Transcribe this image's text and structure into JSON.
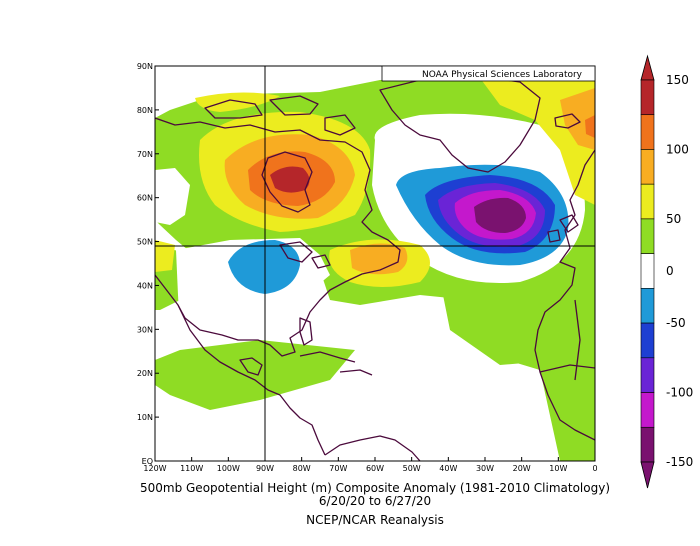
{
  "credit": "NOAA Physical Sciences Laboratory",
  "caption": {
    "line1": "500mb Geopotential Height (m) Composite Anomaly (1981-2010 Climatology)",
    "line2": "6/20/20   to 6/27/20",
    "line3": "NCEP/NCAR Reanalysis"
  },
  "map": {
    "lon_range": [
      -120,
      0
    ],
    "lat_range": [
      0,
      90
    ],
    "lon_ticks": [
      "120W",
      "110W",
      "100W",
      "90W",
      "80W",
      "70W",
      "60W",
      "50W",
      "40W",
      "30W",
      "20W",
      "10W",
      "0"
    ],
    "lat_ticks": [
      "EQ",
      "10N",
      "20N",
      "30N",
      "40N",
      "50N",
      "60N",
      "70N",
      "80N",
      "90N"
    ],
    "crosshair": {
      "lon": -90,
      "lat": 49
    }
  },
  "colorbar": {
    "labels": [
      "150",
      "100",
      "50",
      "0",
      "-50",
      "-100",
      "-150"
    ],
    "bins": [
      {
        "range": [
          125,
          150
        ],
        "color": "#b5262a"
      },
      {
        "range": [
          100,
          125
        ],
        "color": "#f0731c"
      },
      {
        "range": [
          75,
          100
        ],
        "color": "#f8ad22"
      },
      {
        "range": [
          50,
          75
        ],
        "color": "#ecec1f"
      },
      {
        "range": [
          25,
          50
        ],
        "color": "#8fdc24"
      },
      {
        "range": [
          -25,
          25
        ],
        "color": "#ffffff"
      },
      {
        "range": [
          -50,
          -25
        ],
        "color": "#1f9ad8"
      },
      {
        "range": [
          -75,
          -50
        ],
        "color": "#1e3fd2"
      },
      {
        "range": [
          -100,
          -75
        ],
        "color": "#6a24d6"
      },
      {
        "range": [
          -125,
          -100
        ],
        "color": "#c418cc"
      },
      {
        "range": [
          -150,
          -125
        ],
        "color": "#7a126f"
      }
    ]
  }
}
